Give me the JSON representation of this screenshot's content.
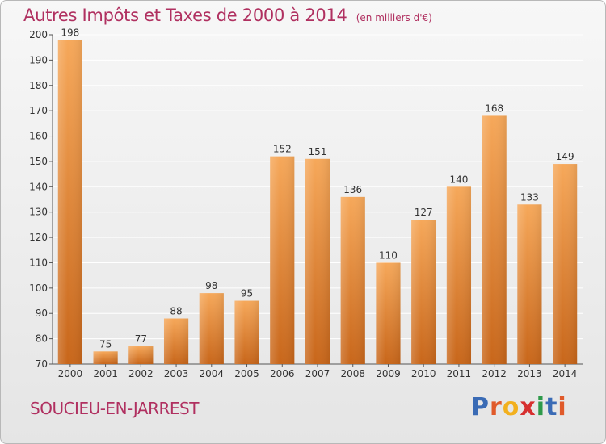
{
  "header": {
    "title": "Autres Impôts et Taxes de 2000 à 2014",
    "unit": "(en milliers d'€)"
  },
  "footer": {
    "commune": "SOUCIEU-EN-JARREST",
    "logo_text": "Proxiti",
    "logo_colors": [
      "#3a6bb5",
      "#e05a2a",
      "#f2b01e",
      "#d62f2f",
      "#2e9a4a",
      "#3a6bb5",
      "#e05a2a"
    ]
  },
  "colors": {
    "text_accent": "#b03060",
    "bar_top": "#f6a85a",
    "bar_bottom": "#c8661a",
    "grid": "#ffffff",
    "axis_text": "#333333"
  },
  "chart_data": {
    "type": "bar",
    "categories": [
      "2000",
      "2001",
      "2002",
      "2003",
      "2004",
      "2005",
      "2006",
      "2007",
      "2008",
      "2009",
      "2010",
      "2011",
      "2012",
      "2013",
      "2014"
    ],
    "values": [
      198,
      75,
      77,
      88,
      98,
      95,
      152,
      151,
      136,
      110,
      127,
      140,
      168,
      133,
      149
    ],
    "title": "Autres Impôts et Taxes de 2000 à 2014",
    "ylim": [
      70,
      200
    ],
    "yticks": [
      70,
      80,
      90,
      100,
      110,
      120,
      130,
      140,
      150,
      160,
      170,
      180,
      190,
      200
    ],
    "grid": true,
    "legend": "none"
  }
}
